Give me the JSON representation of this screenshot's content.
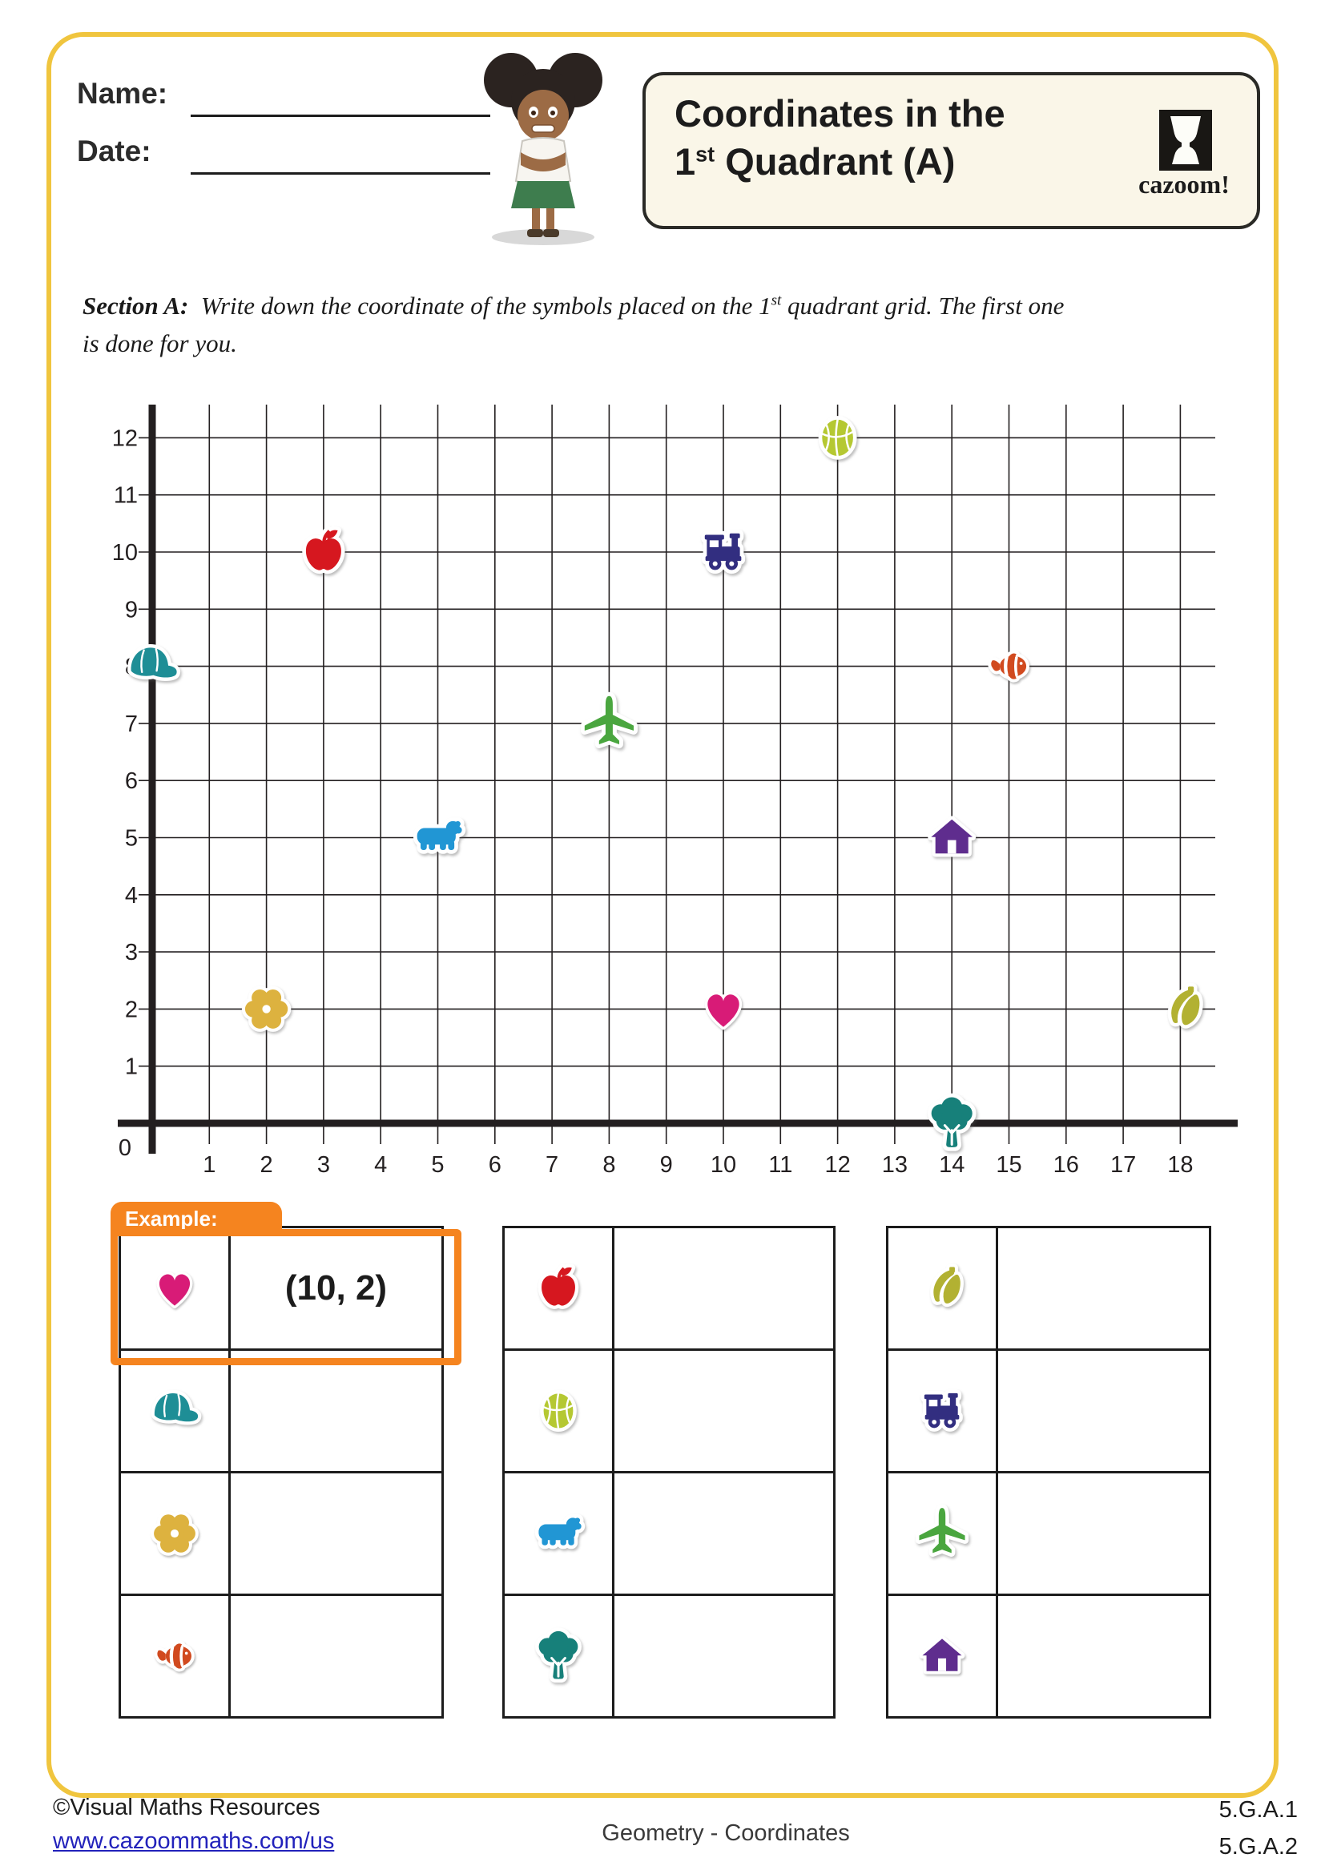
{
  "header": {
    "name_label": "Name:",
    "date_label": "Date:",
    "title_line1": "Coordinates in the",
    "title_num": "1",
    "title_sup": "st",
    "title_rest": " Quadrant (A)",
    "logo_text": "cazoom!"
  },
  "section": {
    "label": "Section A:",
    "line1_a": "Write down the coordinate of the symbols placed on the 1",
    "line1_sup": "st",
    "line1_b": " quadrant grid. The first one",
    "line2": "is done for you."
  },
  "grid": {
    "x_min": 0,
    "x_max": 18,
    "y_min": 0,
    "y_max": 12,
    "x_labels": [
      "0",
      "1",
      "2",
      "3",
      "4",
      "5",
      "6",
      "7",
      "8",
      "9",
      "10",
      "11",
      "12",
      "13",
      "14",
      "15",
      "16",
      "17",
      "18"
    ],
    "y_labels": [
      "1",
      "2",
      "3",
      "4",
      "5",
      "6",
      "7",
      "8",
      "9",
      "10",
      "11",
      "12"
    ],
    "points": [
      {
        "symbol": "basketball",
        "x": 12,
        "y": 12
      },
      {
        "symbol": "apple",
        "x": 3,
        "y": 10
      },
      {
        "symbol": "train",
        "x": 10,
        "y": 10
      },
      {
        "symbol": "cap",
        "x": 0,
        "y": 8
      },
      {
        "symbol": "fish",
        "x": 15,
        "y": 8
      },
      {
        "symbol": "airplane",
        "x": 8,
        "y": 7
      },
      {
        "symbol": "bear",
        "x": 5,
        "y": 5
      },
      {
        "symbol": "house",
        "x": 14,
        "y": 5
      },
      {
        "symbol": "flower",
        "x": 2,
        "y": 2
      },
      {
        "symbol": "heart",
        "x": 10,
        "y": 2
      },
      {
        "symbol": "bananas",
        "x": 18,
        "y": 2
      },
      {
        "symbol": "tree",
        "x": 14,
        "y": 0
      }
    ]
  },
  "symbols": {
    "heart": {
      "color": "#d81b77"
    },
    "cap": {
      "color": "#1e8e96"
    },
    "flower": {
      "color": "#ddb23f"
    },
    "fish": {
      "color": "#d14a1f"
    },
    "apple": {
      "color": "#d6171f"
    },
    "basketball": {
      "color": "#b5c832"
    },
    "bear": {
      "color": "#2196d4"
    },
    "tree": {
      "color": "#17807a"
    },
    "bananas": {
      "color": "#b2b132"
    },
    "train": {
      "color": "#322e80"
    },
    "airplane": {
      "color": "#4aa63f"
    },
    "house": {
      "color": "#5f2d8e"
    }
  },
  "example": {
    "tab_label": "Example:",
    "answer": "(10, 2)"
  },
  "tables": [
    {
      "rows": [
        {
          "symbol": "heart",
          "answer": "(10, 2)"
        },
        {
          "symbol": "cap",
          "answer": ""
        },
        {
          "symbol": "flower",
          "answer": ""
        },
        {
          "symbol": "fish",
          "answer": ""
        }
      ]
    },
    {
      "rows": [
        {
          "symbol": "apple",
          "answer": ""
        },
        {
          "symbol": "basketball",
          "answer": ""
        },
        {
          "symbol": "bear",
          "answer": ""
        },
        {
          "symbol": "tree",
          "answer": ""
        }
      ]
    },
    {
      "rows": [
        {
          "symbol": "bananas",
          "answer": ""
        },
        {
          "symbol": "train",
          "answer": ""
        },
        {
          "symbol": "airplane",
          "answer": ""
        },
        {
          "symbol": "house",
          "answer": ""
        }
      ]
    }
  ],
  "footer": {
    "copyright": "©Visual Maths Resources",
    "url": "www.cazoommaths.com/us",
    "center": "Geometry - Coordinates",
    "standard1": "5.G.A.1",
    "standard2": "5.G.A.2"
  },
  "accent_colors": {
    "page_border": "#f0c53e",
    "example_orange": "#f5841f",
    "ink": "#231f20"
  }
}
